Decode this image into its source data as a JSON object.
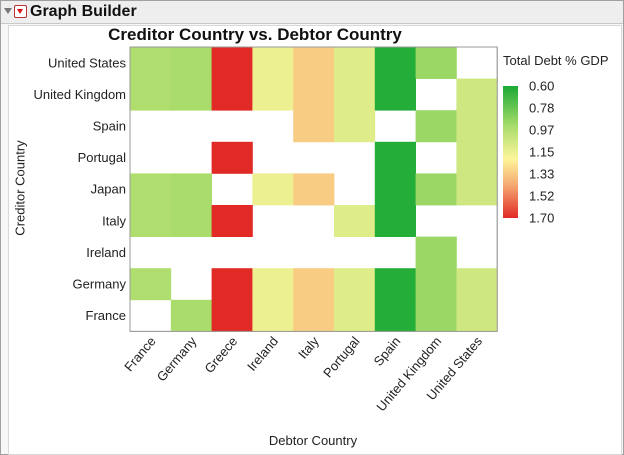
{
  "window": {
    "title": "Graph Builder"
  },
  "chart_data": {
    "type": "heatmap",
    "title": "Creditor Country vs. Debtor Country",
    "xlabel": "Debtor Country",
    "ylabel": "Creditor Country",
    "x_categories": [
      "France",
      "Germany",
      "Greece",
      "Ireland",
      "Italy",
      "Portugal",
      "Spain",
      "United Kingdom",
      "United States"
    ],
    "y_categories": [
      "United States",
      "United Kingdom",
      "Spain",
      "Portugal",
      "Japan",
      "Italy",
      "Ireland",
      "Germany",
      "France"
    ],
    "values": [
      [
        0.9,
        0.88,
        1.7,
        1.1,
        1.3,
        1.05,
        0.62,
        0.85,
        null
      ],
      [
        0.9,
        0.88,
        1.7,
        1.1,
        1.3,
        1.05,
        0.62,
        null,
        1.0
      ],
      [
        null,
        null,
        null,
        null,
        1.3,
        1.05,
        null,
        0.85,
        1.0
      ],
      [
        null,
        null,
        1.7,
        null,
        null,
        null,
        0.62,
        null,
        1.0
      ],
      [
        0.9,
        0.88,
        null,
        1.1,
        1.3,
        null,
        0.62,
        0.85,
        1.0
      ],
      [
        0.9,
        0.88,
        1.7,
        null,
        null,
        1.05,
        0.62,
        null,
        null
      ],
      [
        null,
        null,
        null,
        null,
        null,
        null,
        null,
        0.85,
        null
      ],
      [
        0.9,
        null,
        1.7,
        1.1,
        1.3,
        1.05,
        0.62,
        0.85,
        1.0
      ],
      [
        null,
        0.88,
        1.7,
        1.1,
        1.3,
        1.05,
        0.62,
        0.85,
        1.0
      ]
    ],
    "legend": {
      "title": "Total Debt % GDP",
      "ticks": [
        "0.60",
        "0.78",
        "0.97",
        "1.15",
        "1.33",
        "1.52",
        "1.70"
      ],
      "min": 0.6,
      "max": 1.7,
      "colors": [
        "#1aa935",
        "#a7dc6a",
        "#fdf59a",
        "#f5a972",
        "#e12a26"
      ]
    }
  }
}
